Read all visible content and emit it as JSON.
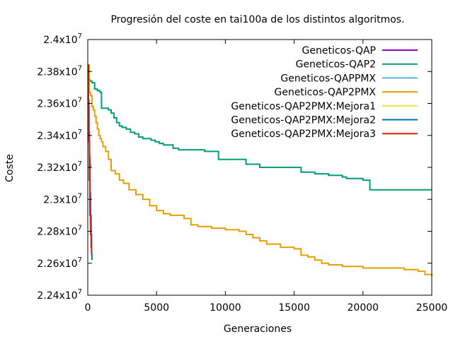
{
  "chart_data": {
    "type": "line",
    "title": "Progresión del coste en tai100a de los distintos algoritmos.",
    "xlabel": "Generaciones",
    "ylabel": "Coste",
    "xlim": [
      0,
      25000
    ],
    "ylim": [
      22400000,
      24000000
    ],
    "x_ticks": [
      0,
      5000,
      10000,
      15000,
      20000,
      25000
    ],
    "x_tick_labels": [
      "0",
      "5000",
      "10000",
      "15000",
      "20000",
      "25000"
    ],
    "y_ticks": [
      22400000,
      22600000,
      22800000,
      23000000,
      23200000,
      23400000,
      23600000,
      23800000,
      24000000
    ],
    "y_tick_labels": [
      {
        "mant": "2.24x10",
        "exp": "7"
      },
      {
        "mant": "2.26x10",
        "exp": "7"
      },
      {
        "mant": "2.28x10",
        "exp": "7"
      },
      {
        "mant": "2.3x10",
        "exp": "7"
      },
      {
        "mant": "2.32x10",
        "exp": "7"
      },
      {
        "mant": "2.34x10",
        "exp": "7"
      },
      {
        "mant": "2.36x10",
        "exp": "7"
      },
      {
        "mant": "2.38x10",
        "exp": "7"
      },
      {
        "mant": "2.4x10",
        "exp": "7"
      }
    ],
    "grid": false,
    "legend_position": "top-right",
    "series": [
      {
        "name": "Geneticos-QAP",
        "color": "#9400d3",
        "x": [
          0,
          40,
          80,
          120,
          160,
          200,
          240
        ],
        "y": [
          23840000,
          23620000,
          23380000,
          23120000,
          22940000,
          22840000,
          22770000
        ]
      },
      {
        "name": "Geneticos-QAP2",
        "color": "#009e73",
        "x": [
          0,
          100,
          150,
          250,
          300,
          500,
          700,
          900,
          1000,
          1200,
          1500,
          1700,
          1900,
          2100,
          2300,
          2500,
          2800,
          3100,
          3400,
          3700,
          4000,
          4300,
          4600,
          4900,
          5200,
          5500,
          5800,
          6200,
          6600,
          7000,
          7500,
          8500,
          9500,
          10500,
          11500,
          12000,
          12500,
          13500,
          14500,
          15500,
          16500,
          17500,
          18500,
          18800,
          19000,
          20000,
          20500,
          21000,
          23000,
          25000
        ],
        "y": [
          23840000,
          23750000,
          23740000,
          23740000,
          23730000,
          23690000,
          23680000,
          23670000,
          23570000,
          23570000,
          23560000,
          23540000,
          23510000,
          23480000,
          23460000,
          23450000,
          23440000,
          23420000,
          23410000,
          23390000,
          23380000,
          23380000,
          23370000,
          23360000,
          23350000,
          23340000,
          23340000,
          23320000,
          23310000,
          23310000,
          23310000,
          23300000,
          23250000,
          23250000,
          23220000,
          23220000,
          23200000,
          23200000,
          23200000,
          23170000,
          23160000,
          23150000,
          23140000,
          23130000,
          23130000,
          23120000,
          23060000,
          23060000,
          23060000,
          23060000
        ]
      },
      {
        "name": "Geneticos-QAPPMX",
        "color": "#56b4e9",
        "x": [
          0,
          40,
          80,
          120,
          160,
          200
        ],
        "y": [
          23800000,
          23560000,
          23420000,
          23280000,
          23220000,
          23200000
        ]
      },
      {
        "name": "Geneticos-QAP2PMX",
        "color": "#e69f00",
        "x": [
          0,
          100,
          200,
          300,
          400,
          500,
          600,
          700,
          800,
          900,
          1000,
          1100,
          1300,
          1500,
          1700,
          2000,
          2300,
          2600,
          3000,
          3500,
          4000,
          4500,
          5000,
          5500,
          6000,
          6500,
          7000,
          7500,
          8000,
          9000,
          10000,
          11000,
          11500,
          12000,
          12500,
          13000,
          14000,
          15000,
          15500,
          16000,
          16500,
          17000,
          17500,
          18500,
          20000,
          22000,
          23000,
          24000,
          24500,
          25000
        ],
        "y": [
          23840000,
          23670000,
          23650000,
          23580000,
          23560000,
          23520000,
          23480000,
          23440000,
          23400000,
          23380000,
          23360000,
          23330000,
          23300000,
          23250000,
          23180000,
          23160000,
          23120000,
          23100000,
          23060000,
          23030000,
          23000000,
          22960000,
          22930000,
          22910000,
          22900000,
          22900000,
          22880000,
          22840000,
          22830000,
          22820000,
          22810000,
          22800000,
          22780000,
          22760000,
          22740000,
          22720000,
          22700000,
          22690000,
          22650000,
          22640000,
          22620000,
          22600000,
          22590000,
          22580000,
          22570000,
          22570000,
          22560000,
          22550000,
          22530000,
          22520000
        ]
      },
      {
        "name": "Geneticos-QAP2PMX:Mejora1",
        "color": "#f0e442",
        "x": [
          0,
          40,
          80,
          120,
          160
        ],
        "y": [
          23780000,
          23540000,
          23380000,
          23250000,
          23220000
        ]
      },
      {
        "name": "Geneticos-QAP2PMX:Mejora2",
        "color": "#0072b2",
        "x": [
          0,
          40,
          80,
          120,
          160,
          200,
          240,
          280,
          300
        ],
        "y": [
          23840000,
          23600000,
          23420000,
          23260000,
          23040000,
          22900000,
          22780000,
          22660000,
          22620000
        ]
      },
      {
        "name": "Geneticos-QAP2PMX:Mejora3",
        "color": "#e51e10",
        "x": [
          0,
          40,
          80,
          120,
          160,
          200,
          240,
          280
        ],
        "y": [
          23840000,
          23580000,
          23360000,
          23120000,
          22900000,
          22780000,
          22700000,
          22660000
        ]
      }
    ]
  }
}
